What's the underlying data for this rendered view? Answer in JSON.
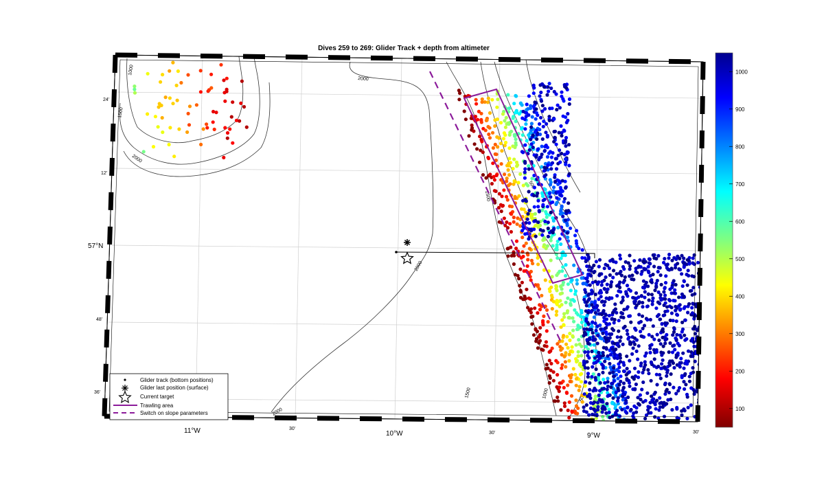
{
  "title": "Dives 259 to 269: Glider Track + depth from altimeter",
  "lat_labels": {
    "l24": "24'",
    "l12": "12'",
    "l57": "57°N",
    "l48": "48'",
    "l36": "36'"
  },
  "lon_labels": {
    "w11": "11°W",
    "w30a": "30'",
    "w10": "10°W",
    "w30b": "30'",
    "w9": "9°W",
    "w30c": "30'"
  },
  "contour_labels": {
    "c1000": "1000",
    "c1500a": "1500",
    "c2000a": "2000",
    "c2000b": "2000",
    "c1500b": "1500",
    "c500a": "500",
    "c2000c": "2000",
    "c1500c": "1500",
    "c1000b": "1000",
    "c500b": "500",
    "c2000d": "2000",
    "c30": "30'"
  },
  "colorbar": {
    "ticks": [
      "1000",
      "900",
      "800",
      "700",
      "600",
      "500",
      "400",
      "300",
      "200",
      "100"
    ],
    "range": [
      50,
      1050
    ],
    "colormap": "jet-reversed"
  },
  "legend": {
    "track": "Glider track (bottom positions)",
    "last_position": "Glider last position (surface)",
    "target": "Current target",
    "trawling": "Trawling area",
    "switch": "Switch on slope parameters"
  },
  "colors": {
    "trawling": "#8b1a9a",
    "switch": "#8b1a9a",
    "track": "#000000"
  }
}
